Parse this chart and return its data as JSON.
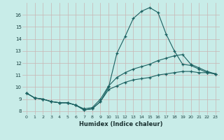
{
  "xlabel": "Humidex (Indice chaleur)",
  "background_color": "#c8ece8",
  "grid_color": "#c8b4b4",
  "line_color": "#1a6060",
  "xlim": [
    -0.5,
    23.5
  ],
  "ylim": [
    7.7,
    17.0
  ],
  "xticks": [
    0,
    1,
    2,
    3,
    4,
    5,
    6,
    7,
    8,
    9,
    10,
    11,
    12,
    13,
    14,
    15,
    16,
    17,
    18,
    19,
    20,
    21,
    22,
    23
  ],
  "yticks": [
    8,
    9,
    10,
    11,
    12,
    13,
    14,
    15,
    16
  ],
  "series1_x": [
    0,
    1,
    2,
    3,
    4,
    5,
    6,
    7,
    8,
    9,
    10,
    11,
    12,
    13,
    14,
    15,
    16,
    17,
    18,
    19,
    20,
    21,
    22,
    23
  ],
  "series1_y": [
    9.5,
    9.1,
    9.0,
    8.8,
    8.7,
    8.7,
    8.5,
    8.1,
    8.2,
    8.8,
    10.0,
    12.8,
    14.2,
    15.7,
    16.3,
    16.6,
    16.2,
    14.4,
    13.0,
    11.9,
    11.8,
    11.5,
    11.2,
    11.1
  ],
  "series2_x": [
    0,
    1,
    2,
    3,
    4,
    5,
    6,
    7,
    8,
    9,
    10,
    11,
    12,
    13,
    14,
    15,
    16,
    17,
    18,
    19,
    20,
    21,
    22,
    23
  ],
  "series2_y": [
    9.5,
    9.1,
    9.0,
    8.8,
    8.7,
    8.7,
    8.5,
    8.2,
    8.3,
    9.0,
    10.1,
    10.8,
    11.2,
    11.5,
    11.7,
    11.9,
    12.2,
    12.4,
    12.6,
    12.7,
    11.9,
    11.6,
    11.3,
    11.1
  ],
  "series3_x": [
    0,
    1,
    2,
    3,
    4,
    5,
    6,
    7,
    8,
    9,
    10,
    11,
    12,
    13,
    14,
    15,
    16,
    17,
    18,
    19,
    20,
    21,
    22,
    23
  ],
  "series3_y": [
    9.5,
    9.1,
    9.0,
    8.8,
    8.7,
    8.7,
    8.5,
    8.1,
    8.2,
    8.8,
    9.8,
    10.1,
    10.4,
    10.6,
    10.7,
    10.8,
    11.0,
    11.1,
    11.2,
    11.3,
    11.3,
    11.2,
    11.2,
    11.1
  ]
}
